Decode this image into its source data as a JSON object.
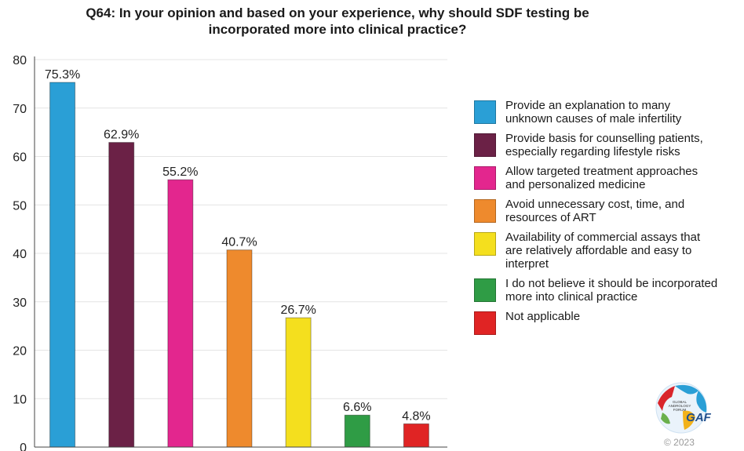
{
  "chart_data": {
    "type": "bar",
    "title": "Q64: In your opinion and based on your experience, why should SDF testing be incorporated more into clinical practice?",
    "xlabel": "",
    "ylabel": "",
    "ylim": [
      0,
      80
    ],
    "yticks": [
      0,
      10,
      20,
      30,
      40,
      50,
      60,
      70,
      80
    ],
    "grid": true,
    "legend_position": "right",
    "categories": [
      "Provide an explanation to many unknown causes of male infertility",
      "Provide basis for counselling patients, especially regarding lifestyle risks",
      "Allow targeted treatment approaches and personalized medicine",
      "Avoid unnecessary cost, time, and resources of ART",
      "Availability of commercial assays that are relatively affordable and easy to interpret",
      "I do not believe it should be incorporated more into clinical practice",
      "Not applicable"
    ],
    "values": [
      75.3,
      62.9,
      55.2,
      40.7,
      26.7,
      6.6,
      4.8
    ],
    "data_labels": [
      "75.3%",
      "62.9%",
      "55.2%",
      "40.7%",
      "26.7%",
      "6.6%",
      "4.8%"
    ],
    "colors": [
      "#2a9fd6",
      "#6b2146",
      "#e3268e",
      "#ee8a2d",
      "#f4df1e",
      "#2f9c45",
      "#e02424"
    ]
  },
  "legend": [
    {
      "label": "Provide an explanation to many\nunknown causes of male infertility",
      "color": "#2a9fd6"
    },
    {
      "label": "Provide basis for counselling patients,\nespecially regarding lifestyle risks",
      "color": "#6b2146"
    },
    {
      "label": "Allow targeted treatment approaches\nand personalized medicine",
      "color": "#e3268e"
    },
    {
      "label": "Avoid unnecessary cost, time, and\nresources of ART",
      "color": "#ee8a2d"
    },
    {
      "label": "Availability of commercial assays that\nare relatively affordable and easy to\ninterpret",
      "color": "#f4df1e"
    },
    {
      "label": "I do not believe it should be incorporated\nmore into clinical practice",
      "color": "#2f9c45"
    },
    {
      "label": "Not applicable",
      "color": "#e02424"
    }
  ],
  "logo": {
    "line1": "GLOBAL",
    "line2": "ANDROLOGY",
    "line3": "FORUM",
    "mark": "GAF",
    "icon": "globe-icon"
  },
  "copyright": "© 2023"
}
